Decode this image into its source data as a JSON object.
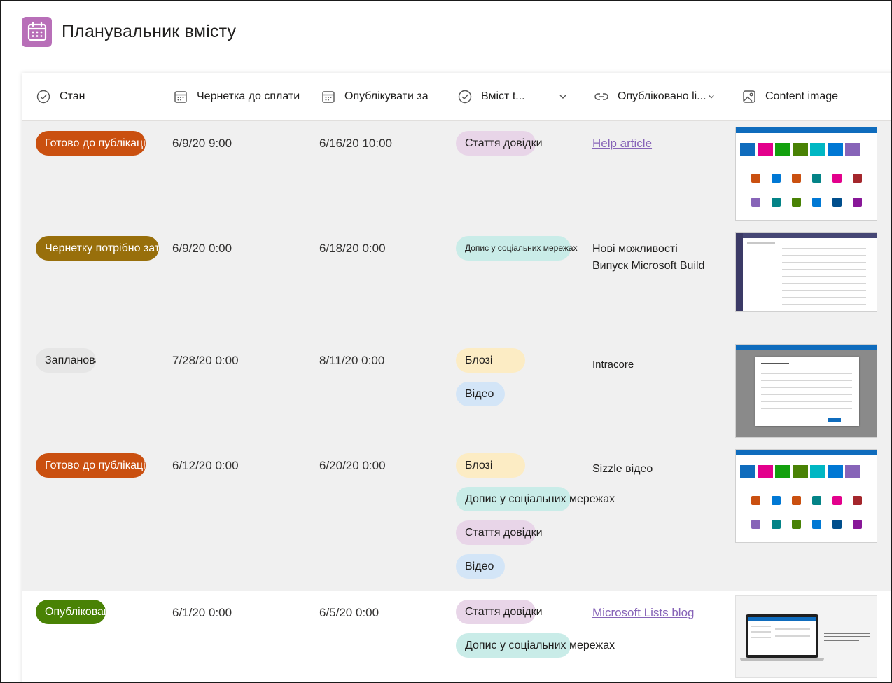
{
  "app": {
    "title": "Планувальник вмісту",
    "icon": "calendar-icon",
    "icon_color": "#b86fb8"
  },
  "columns": [
    {
      "label": "Стан",
      "icon": "status-check-icon"
    },
    {
      "label": "Чернетка до сплати",
      "icon": "calendar-icon"
    },
    {
      "label": "Опублікувати за",
      "icon": "calendar-icon"
    },
    {
      "label": "Вміст t...",
      "icon": "status-check-icon"
    },
    {
      "label": "Опубліковано li...",
      "icon": "link-icon"
    },
    {
      "label": "Content image",
      "icon": "image-icon"
    }
  ],
  "rows": [
    {
      "status": "Готово до публікації",
      "status_color": "#ca5010",
      "draft_due": "6/9/20 9:00",
      "publish_by": "6/16/20 10:00",
      "tags": [
        {
          "label": "Стаття довідки",
          "color": "#e8d5e8"
        }
      ],
      "link": {
        "text": "Help article",
        "is_link": true
      }
    },
    {
      "status": "Чернетку потрібно затвердити",
      "status_color": "#986f0b",
      "draft_due": "6/9/20 0:00",
      "publish_by": "6/18/20 0:00",
      "tags": [
        {
          "label": "Допис у соціальних мережах",
          "color": "#c9ece8"
        }
      ],
      "link": {
        "text": "Нові можливості",
        "text2": "Випуск Microsoft Build",
        "is_link": false
      }
    },
    {
      "status": "Заплановані",
      "status_color": "#e6e6e6",
      "draft_due": "7/28/20 0:00",
      "publish_by": "8/11/20 0:00",
      "tags": [
        {
          "label": "Блозі",
          "color": "#fcecc4"
        },
        {
          "label": "Відео",
          "color": "#d3e5f7"
        }
      ],
      "link": {
        "text": "Intracore",
        "is_link": false
      }
    },
    {
      "status": "Готово до публікації",
      "status_color": "#ca5010",
      "draft_due": "6/12/20 0:00",
      "publish_by": "6/20/20 0:00",
      "tags": [
        {
          "label": "Блозі",
          "color": "#fcecc4"
        },
        {
          "label": "Допис у соціальних мережах",
          "color": "#c9ece8"
        },
        {
          "label": "Стаття довідки",
          "color": "#e8d5e8"
        },
        {
          "label": "Відео",
          "color": "#d3e5f7"
        }
      ],
      "link": {
        "text": "Sizzle відео",
        "is_link": false
      }
    },
    {
      "status": "Опубліковано",
      "status_color": "#498205",
      "draft_due": "6/1/20 0:00",
      "publish_by": "6/5/20 0:00",
      "tags": [
        {
          "label": "Стаття довідки",
          "color": "#e8d5e8"
        },
        {
          "label": "Допис у соціальних мережах",
          "color": "#c9ece8"
        }
      ],
      "link": {
        "text": "Microsoft Lists blog",
        "is_link": true
      }
    }
  ]
}
